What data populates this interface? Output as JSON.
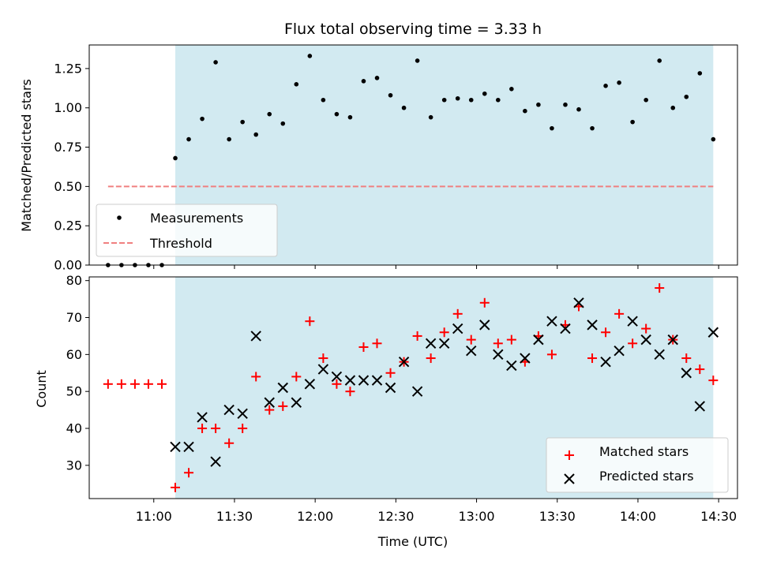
{
  "colors": {
    "observing_band": "#add8e6",
    "measurement": "#000000",
    "threshold": "#f08080",
    "matched": "#ff0000",
    "predicted": "#000000"
  },
  "chart_data": [
    {
      "type": "scatter",
      "title": "Flux total observing time = 3.33 h",
      "xlabel": "",
      "ylabel": "Matched/Predicted stars",
      "ylim": [
        0,
        1.4
      ],
      "yticks": [
        "0.00",
        "0.25",
        "0.50",
        "0.75",
        "1.00",
        "1.25"
      ],
      "xlim": [
        "10:36",
        "14:37"
      ],
      "observing_window": [
        "11:08",
        "14:28"
      ],
      "legend_placement": "lower left",
      "threshold": {
        "name": "Threshold",
        "value": 0.5,
        "x_range": [
          "10:43",
          "14:28"
        ]
      },
      "series": [
        {
          "name": "Measurements",
          "x": [
            "10:43",
            "10:48",
            "10:53",
            "10:58",
            "11:03",
            "11:08",
            "11:13",
            "11:18",
            "11:23",
            "11:28",
            "11:33",
            "11:38",
            "11:43",
            "11:48",
            "11:53",
            "11:58",
            "12:03",
            "12:08",
            "12:13",
            "12:18",
            "12:23",
            "12:28",
            "12:33",
            "12:38",
            "12:43",
            "12:48",
            "12:53",
            "12:58",
            "13:03",
            "13:08",
            "13:13",
            "13:18",
            "13:23",
            "13:28",
            "13:33",
            "13:38",
            "13:43",
            "13:48",
            "13:53",
            "13:58",
            "14:03",
            "14:08",
            "14:13",
            "14:18",
            "14:23",
            "14:28"
          ],
          "y": [
            0,
            0,
            0,
            0,
            0,
            0.68,
            0.8,
            0.93,
            1.29,
            0.8,
            0.91,
            0.83,
            0.96,
            0.9,
            1.15,
            1.33,
            1.05,
            0.96,
            0.94,
            1.17,
            1.19,
            1.08,
            1.0,
            1.3,
            0.94,
            1.05,
            1.06,
            1.05,
            1.09,
            1.05,
            1.12,
            0.98,
            1.02,
            0.87,
            1.02,
            0.99,
            0.87,
            1.14,
            1.16,
            0.91,
            1.05,
            1.3,
            1.0,
            1.07,
            1.22,
            0.8
          ]
        }
      ]
    },
    {
      "type": "scatter",
      "title": "",
      "xlabel": "Time (UTC)",
      "ylabel": "Count",
      "ylim": [
        21,
        81
      ],
      "yticks": [
        "30",
        "40",
        "50",
        "60",
        "70",
        "80"
      ],
      "xlim": [
        "10:36",
        "14:37"
      ],
      "xticks": [
        "11:00",
        "11:30",
        "12:00",
        "12:30",
        "13:00",
        "13:30",
        "14:00",
        "14:30"
      ],
      "observing_window": [
        "11:08",
        "14:28"
      ],
      "legend_placement": "lower right",
      "series": [
        {
          "name": "Matched stars",
          "x": [
            "10:43",
            "10:48",
            "10:53",
            "10:58",
            "11:03",
            "11:08",
            "11:13",
            "11:18",
            "11:23",
            "11:28",
            "11:33",
            "11:38",
            "11:43",
            "11:48",
            "11:53",
            "11:58",
            "12:03",
            "12:08",
            "12:13",
            "12:18",
            "12:23",
            "12:28",
            "12:33",
            "12:38",
            "12:43",
            "12:48",
            "12:53",
            "12:58",
            "13:03",
            "13:08",
            "13:13",
            "13:18",
            "13:23",
            "13:28",
            "13:33",
            "13:38",
            "13:43",
            "13:48",
            "13:53",
            "13:58",
            "14:03",
            "14:08",
            "14:13",
            "14:18",
            "14:23",
            "14:28"
          ],
          "y": [
            52,
            52,
            52,
            52,
            52,
            24,
            28,
            40,
            40,
            36,
            40,
            54,
            45,
            46,
            54,
            69,
            59,
            52,
            50,
            62,
            63,
            55,
            58,
            65,
            59,
            66,
            71,
            64,
            74,
            63,
            64,
            58,
            65,
            60,
            68,
            73,
            59,
            66,
            71,
            63,
            67,
            78,
            64,
            59,
            56,
            53
          ]
        },
        {
          "name": "Predicted stars",
          "x": [
            "11:08",
            "11:13",
            "11:18",
            "11:23",
            "11:28",
            "11:33",
            "11:38",
            "11:43",
            "11:48",
            "11:53",
            "11:58",
            "12:03",
            "12:08",
            "12:13",
            "12:18",
            "12:23",
            "12:28",
            "12:33",
            "12:38",
            "12:43",
            "12:48",
            "12:53",
            "12:58",
            "13:03",
            "13:08",
            "13:13",
            "13:18",
            "13:23",
            "13:28",
            "13:33",
            "13:38",
            "13:43",
            "13:48",
            "13:53",
            "13:58",
            "14:03",
            "14:08",
            "14:13",
            "14:18",
            "14:23",
            "14:28"
          ],
          "y": [
            35,
            35,
            43,
            31,
            45,
            44,
            65,
            47,
            51,
            47,
            52,
            56,
            54,
            53,
            53,
            53,
            51,
            58,
            50,
            63,
            63,
            67,
            61,
            68,
            60,
            57,
            59,
            64,
            69,
            67,
            74,
            68,
            58,
            61,
            69,
            64,
            60,
            64,
            55,
            46,
            66
          ]
        }
      ]
    }
  ]
}
